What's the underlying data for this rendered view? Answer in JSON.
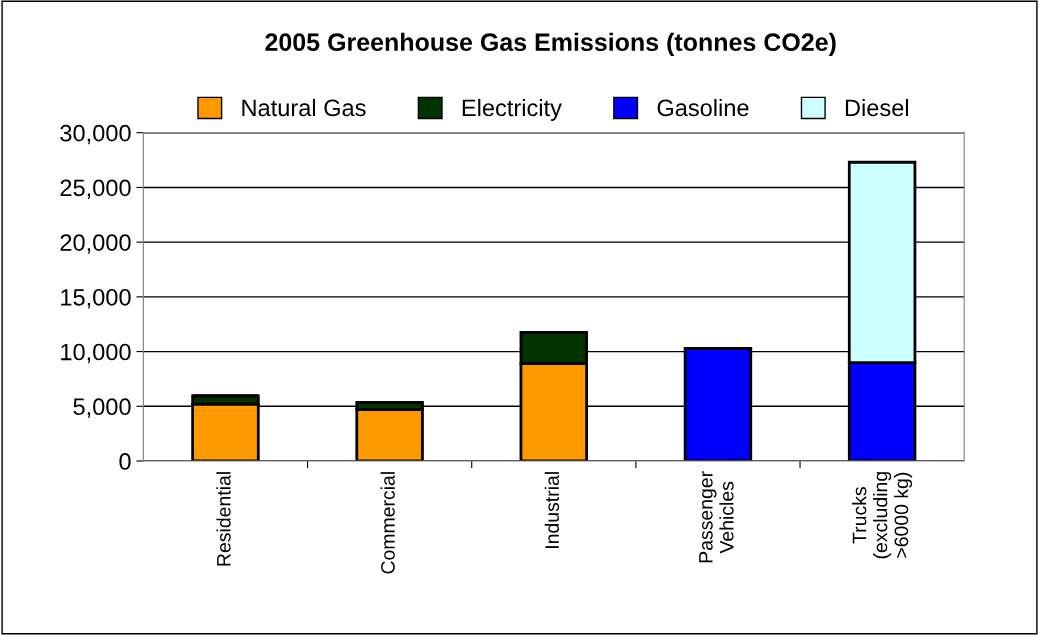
{
  "chart_data": {
    "type": "bar",
    "title": "2005 Greenhouse Gas Emissions (tonnes CO2e)",
    "categories": [
      "Residential",
      "Commercial",
      "Industrial",
      "Passenger\nVehicles",
      "Trucks\n(excluding\n>6000 kg)"
    ],
    "stacked": true,
    "series": [
      {
        "name": "Natural Gas",
        "color": "#ff9900",
        "values": [
          5200,
          4700,
          8900,
          null,
          null
        ]
      },
      {
        "name": "Electricity",
        "color": "#003300",
        "values": [
          750,
          650,
          2850,
          null,
          null
        ]
      },
      {
        "name": "Gasoline",
        "color": "#0000ff",
        "values": [
          null,
          null,
          null,
          10300,
          9000
        ]
      },
      {
        "name": "Diesel",
        "color": "#ccffff",
        "values": [
          null,
          null,
          null,
          null,
          18300
        ]
      }
    ],
    "ylim": [
      0,
      30000
    ],
    "yticks": [
      {
        "value": 0,
        "label": "0"
      },
      {
        "value": 5000,
        "label": "5,000"
      },
      {
        "value": 10000,
        "label": "10,000"
      },
      {
        "value": 15000,
        "label": "15,000"
      },
      {
        "value": 20000,
        "label": "20,000"
      },
      {
        "value": 25000,
        "label": "25,000"
      },
      {
        "value": 30000,
        "label": "30,000"
      }
    ],
    "grid": "y",
    "legend": "top"
  }
}
